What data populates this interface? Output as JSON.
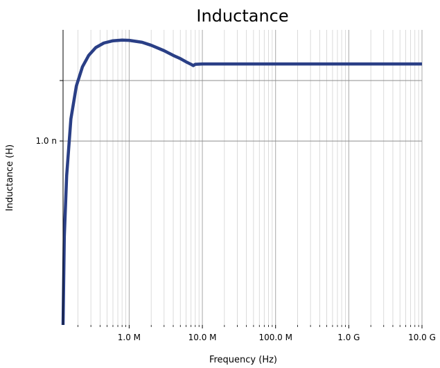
{
  "chart_data": {
    "type": "line",
    "title": "Inductance",
    "xlabel": "Frequency (Hz)",
    "ylabel": "Inductance (H)",
    "x_scale": "log",
    "y_scale": "log",
    "xlim": [
      125000,
      10000000000
    ],
    "ylim": [
      4.5e-10,
      1.62e-09
    ],
    "grid": true,
    "x_major_ticks": [
      {
        "value": 1000000,
        "label": "1.0 M"
      },
      {
        "value": 10000000,
        "label": "10.0 M"
      },
      {
        "value": 100000000,
        "label": "100.0 M"
      },
      {
        "value": 1000000000,
        "label": "1.0 G"
      },
      {
        "value": 10000000000,
        "label": "10.0 G"
      }
    ],
    "y_major_ticks": [
      {
        "value": 1e-09,
        "label": "1.0 n"
      },
      {
        "value": 1.3e-09,
        "label": ""
      }
    ],
    "series": [
      {
        "color": "#2a3f86",
        "x": [
          125000,
          130000,
          140000,
          160000,
          190000,
          230000,
          280000,
          350000,
          450000,
          600000,
          800000,
          1000000,
          1500000,
          2000000,
          3000000,
          4000000,
          5000000,
          6000000,
          7000000,
          7500000,
          8000000,
          10000000,
          100000000,
          1000000000,
          10000000000
        ],
        "y": [
          4.5e-10,
          6.6e-10,
          8.6e-10,
          1.1e-09,
          1.27e-09,
          1.38e-09,
          1.45e-09,
          1.5e-09,
          1.53e-09,
          1.545e-09,
          1.55e-09,
          1.548e-09,
          1.535e-09,
          1.515e-09,
          1.48e-09,
          1.45e-09,
          1.43e-09,
          1.41e-09,
          1.395e-09,
          1.387e-09,
          1.395e-09,
          1.397e-09,
          1.397e-09,
          1.397e-09,
          1.397e-09
        ]
      }
    ]
  }
}
